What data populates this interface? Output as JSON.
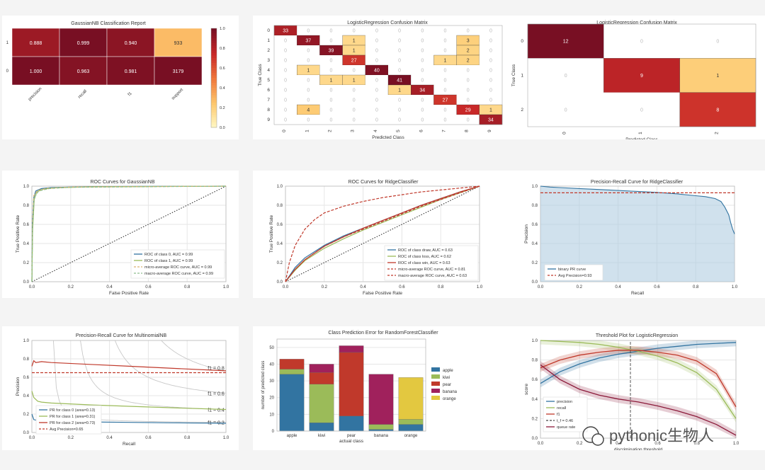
{
  "colors": {
    "blue": "#3274a1",
    "green": "#9bbb59",
    "red": "#c0392b",
    "maroon": "#8b1a3a",
    "yellow": "#e3c840",
    "grid": "#e6e6e6",
    "axis": "#666666",
    "text": "#333333"
  },
  "chart_data": [
    {
      "type": "heatmap",
      "id": "p1",
      "title": "GaussianNB Classification Report",
      "rows": [
        "1",
        "0"
      ],
      "columns": [
        "precision",
        "recall",
        "f1",
        "support"
      ],
      "cells": [
        [
          "0.888",
          "0.999",
          "0.940",
          "933"
        ],
        [
          "1.000",
          "0.963",
          "0.981",
          "3179"
        ]
      ],
      "intensity": [
        [
          0.888,
          0.999,
          0.94,
          0.29
        ],
        [
          1.0,
          0.963,
          0.981,
          1.0
        ]
      ],
      "colorbar_ticks": [
        "1.0",
        "0.8",
        "0.6",
        "0.4",
        "0.2",
        "0.0"
      ]
    },
    {
      "type": "heatmap",
      "id": "p2",
      "title": "LogisticRegression Confusion Matrix",
      "xlabel": "Predicted Class",
      "ylabel": "True Class",
      "labels": [
        "0",
        "1",
        "2",
        "3",
        "4",
        "5",
        "6",
        "7",
        "8",
        "9"
      ],
      "matrix": [
        [
          33,
          0,
          0,
          0,
          0,
          0,
          0,
          0,
          0,
          0
        ],
        [
          0,
          37,
          0,
          1,
          0,
          0,
          0,
          0,
          3,
          0
        ],
        [
          0,
          0,
          39,
          1,
          0,
          0,
          0,
          0,
          2,
          0
        ],
        [
          0,
          0,
          0,
          27,
          0,
          0,
          0,
          1,
          2,
          0
        ],
        [
          0,
          1,
          0,
          0,
          40,
          0,
          0,
          0,
          0,
          0
        ],
        [
          0,
          0,
          1,
          1,
          0,
          41,
          0,
          0,
          0,
          0
        ],
        [
          0,
          0,
          0,
          0,
          0,
          1,
          34,
          0,
          0,
          0
        ],
        [
          0,
          0,
          0,
          0,
          0,
          0,
          0,
          27,
          0,
          0
        ],
        [
          0,
          4,
          0,
          0,
          0,
          0,
          0,
          0,
          29,
          1
        ],
        [
          0,
          0,
          0,
          0,
          0,
          0,
          0,
          0,
          0,
          34
        ]
      ]
    },
    {
      "type": "heatmap",
      "id": "p3",
      "title": "LogisticRegression Confusion Matrix",
      "xlabel": "Predicted Class",
      "ylabel": "True Class",
      "labels": [
        "0",
        "1",
        "2"
      ],
      "matrix": [
        [
          12,
          0,
          0
        ],
        [
          0,
          9,
          1
        ],
        [
          0,
          0,
          8
        ]
      ]
    },
    {
      "type": "line",
      "id": "p4",
      "title": "ROC Curves for GaussianNB",
      "xlabel": "False Positive Rate",
      "ylabel": "True Positive Rate",
      "xlim": [
        0,
        1
      ],
      "ylim": [
        0,
        1
      ],
      "ticks": [
        "0.0",
        "0.2",
        "0.4",
        "0.6",
        "0.8",
        "1.0"
      ],
      "series": [
        {
          "name": "ROC of class 0, AUC = 0.99",
          "color": "#3274a1",
          "style": "solid",
          "x": [
            0,
            0.003,
            0.01,
            0.02,
            0.05,
            0.1,
            0.3,
            1
          ],
          "y": [
            0,
            0.6,
            0.88,
            0.95,
            0.975,
            0.985,
            0.995,
            1
          ]
        },
        {
          "name": "ROC of class 1, AUC = 0.99",
          "color": "#9bbb59",
          "style": "solid",
          "x": [
            0,
            0.004,
            0.012,
            0.025,
            0.06,
            0.12,
            0.3,
            1
          ],
          "y": [
            0,
            0.55,
            0.86,
            0.94,
            0.97,
            0.982,
            0.993,
            1
          ]
        },
        {
          "name": "micro-average ROC curve, AUC = 0.99",
          "color": "#d9b26f",
          "style": "dashed",
          "x": [
            0,
            0.003,
            0.01,
            0.03,
            0.08,
            0.2,
            1
          ],
          "y": [
            0,
            0.62,
            0.9,
            0.955,
            0.978,
            0.99,
            1
          ]
        },
        {
          "name": "macro-average ROC curve, AUC = 0.99",
          "color": "#8fbf8f",
          "style": "dashed",
          "x": [
            0,
            0.004,
            0.012,
            0.035,
            0.09,
            0.2,
            1
          ],
          "y": [
            0,
            0.6,
            0.88,
            0.95,
            0.975,
            0.988,
            1
          ]
        }
      ]
    },
    {
      "type": "line",
      "id": "p5",
      "title": "ROC Curves for RidgeClassifier",
      "xlabel": "False Positive Rate",
      "ylabel": "True Positive Rate",
      "xlim": [
        0,
        1
      ],
      "ylim": [
        0,
        1
      ],
      "ticks": [
        "0.0",
        "0.2",
        "0.4",
        "0.6",
        "0.8",
        "1.0"
      ],
      "series": [
        {
          "name": "ROC of class draw, AUC = 0.63",
          "color": "#3274a1",
          "style": "solid",
          "x": [
            0,
            0.05,
            0.1,
            0.2,
            0.3,
            0.4,
            0.5,
            0.6,
            0.7,
            0.8,
            0.9,
            1
          ],
          "y": [
            0,
            0.15,
            0.25,
            0.38,
            0.48,
            0.56,
            0.64,
            0.72,
            0.8,
            0.87,
            0.94,
            1
          ]
        },
        {
          "name": "ROC of class loss, AUC = 0.62",
          "color": "#9bbb59",
          "style": "solid",
          "x": [
            0,
            0.05,
            0.1,
            0.2,
            0.3,
            0.4,
            0.5,
            0.6,
            0.7,
            0.8,
            0.9,
            1
          ],
          "y": [
            0,
            0.12,
            0.22,
            0.35,
            0.45,
            0.54,
            0.62,
            0.7,
            0.78,
            0.86,
            0.93,
            1
          ]
        },
        {
          "name": "ROC of class win, AUC = 0.63",
          "color": "#c0392b",
          "style": "solid",
          "x": [
            0,
            0.05,
            0.1,
            0.2,
            0.3,
            0.4,
            0.5,
            0.6,
            0.7,
            0.8,
            0.9,
            1
          ],
          "y": [
            0,
            0.13,
            0.23,
            0.37,
            0.47,
            0.56,
            0.64,
            0.72,
            0.8,
            0.87,
            0.94,
            1
          ]
        },
        {
          "name": "micro-average ROC curve, AUC = 0.81",
          "color": "#c0392b",
          "style": "dashed",
          "x": [
            0,
            0.02,
            0.05,
            0.1,
            0.15,
            0.2,
            0.3,
            0.4,
            0.5,
            0.6,
            0.7,
            0.8,
            0.9,
            1
          ],
          "y": [
            0,
            0.2,
            0.38,
            0.55,
            0.65,
            0.72,
            0.79,
            0.84,
            0.88,
            0.91,
            0.94,
            0.96,
            0.98,
            1
          ]
        },
        {
          "name": "macro-average ROC curve, AUC = 0.63",
          "color": "#c0392b",
          "style": "dashed",
          "x": [
            0,
            0.05,
            0.1,
            0.2,
            0.3,
            0.4,
            0.5,
            0.6,
            0.7,
            0.8,
            0.9,
            1
          ],
          "y": [
            0,
            0.13,
            0.23,
            0.37,
            0.47,
            0.55,
            0.63,
            0.71,
            0.79,
            0.86,
            0.93,
            1
          ]
        }
      ]
    },
    {
      "type": "area",
      "id": "p6",
      "title": "Precision-Recall Curve for RidgeClassifier",
      "xlabel": "Recall",
      "ylabel": "Precision",
      "xlim": [
        0,
        1
      ],
      "ylim": [
        0,
        1
      ],
      "ticks": [
        "0.0",
        "0.2",
        "0.4",
        "0.6",
        "0.8",
        "1.0"
      ],
      "x": [
        0,
        0.05,
        0.1,
        0.2,
        0.3,
        0.4,
        0.5,
        0.6,
        0.7,
        0.8,
        0.85,
        0.9,
        0.93,
        0.95,
        0.97,
        0.98,
        0.99,
        1
      ],
      "y": [
        1,
        0.99,
        0.985,
        0.975,
        0.965,
        0.955,
        0.945,
        0.935,
        0.92,
        0.9,
        0.89,
        0.87,
        0.84,
        0.78,
        0.7,
        0.62,
        0.55,
        0.5
      ],
      "avg_precision": 0.93,
      "legend": [
        "binary PR curve",
        "Avg Precision=0.93"
      ]
    },
    {
      "type": "line",
      "id": "p7",
      "title": "Precision-Recall Curve for MultinomialNB",
      "xlabel": "Recall",
      "ylabel": "Precision",
      "xlim": [
        0,
        1
      ],
      "ylim": [
        0,
        1
      ],
      "ticks": [
        "0.0",
        "0.2",
        "0.4",
        "0.6",
        "0.8",
        "1.0"
      ],
      "iso_f1": [
        "f1 = 0.8",
        "f1 = 0.6",
        "f1 = 0.4",
        "f1 = 0.2"
      ],
      "iso_values": [
        0.8,
        0.6,
        0.4,
        0.2
      ],
      "series": [
        {
          "name": "PR for class 0 (area=0.13)",
          "color": "#3274a1",
          "x": [
            0,
            0.01,
            0.05,
            0.1,
            0.3,
            0.5,
            0.7,
            1
          ],
          "y": [
            0.2,
            0.14,
            0.12,
            0.12,
            0.115,
            0.11,
            0.105,
            0.1
          ]
        },
        {
          "name": "PR for class 1 (area=0.31)",
          "color": "#9bbb59",
          "x": [
            0,
            0.01,
            0.03,
            0.05,
            0.1,
            0.3,
            0.5,
            0.7,
            1
          ],
          "y": [
            0.45,
            0.38,
            0.34,
            0.33,
            0.32,
            0.3,
            0.285,
            0.27,
            0.25
          ]
        },
        {
          "name": "PR for class 2 (area=0.73)",
          "color": "#c0392b",
          "x": [
            0,
            0.01,
            0.02,
            0.05,
            0.1,
            0.3,
            0.5,
            0.7,
            1
          ],
          "y": [
            0.72,
            0.78,
            0.76,
            0.77,
            0.76,
            0.74,
            0.72,
            0.7,
            0.67
          ]
        }
      ],
      "avg_precision": 0.65,
      "avg_label": "Avg Precision=0.65"
    },
    {
      "type": "bar",
      "id": "p8",
      "title": "Class Prediction Error for RandomForestClassifier",
      "xlabel": "actual class",
      "ylabel": "number of predicted class",
      "categories": [
        "apple",
        "kiwi",
        "pear",
        "banana",
        "orange"
      ],
      "ylim": [
        0,
        55
      ],
      "yticks": [
        "0",
        "10",
        "20",
        "30",
        "40",
        "50"
      ],
      "series": [
        {
          "name": "apple",
          "color": "#3274a1",
          "values": [
            34,
            5,
            9,
            1,
            4
          ]
        },
        {
          "name": "kiwi",
          "color": "#9bbb59",
          "values": [
            3,
            23,
            0,
            3,
            3
          ]
        },
        {
          "name": "pear",
          "color": "#c0392b",
          "values": [
            6,
            7,
            38,
            0,
            0
          ]
        },
        {
          "name": "banana",
          "color": "#a0215c",
          "values": [
            0,
            5,
            4,
            30,
            0
          ]
        },
        {
          "name": "orange",
          "color": "#e3c840",
          "values": [
            0,
            0,
            0,
            0,
            25
          ]
        }
      ]
    },
    {
      "type": "line",
      "id": "p9",
      "title": "Threshold Plot for LogisticRegression",
      "xlabel": "discrimination threshold",
      "ylabel": "score",
      "xlim": [
        0,
        1
      ],
      "ylim": [
        0,
        1
      ],
      "xticks": [
        "0.0",
        "0.2",
        "0.4",
        "0.6",
        "0.8",
        "1.0"
      ],
      "yticks": [
        "0.0",
        "0.2",
        "0.4",
        "0.6",
        "0.8",
        "1.0"
      ],
      "threshold": 0.46,
      "threshold_label": "t_f = 0.46",
      "series": [
        {
          "name": "precision",
          "color": "#3274a1",
          "x": [
            0,
            0.1,
            0.2,
            0.3,
            0.4,
            0.5,
            0.6,
            0.7,
            0.8,
            0.9,
            1
          ],
          "y": [
            0.56,
            0.68,
            0.76,
            0.82,
            0.86,
            0.89,
            0.92,
            0.94,
            0.96,
            0.97,
            0.98
          ]
        },
        {
          "name": "recall",
          "color": "#9bbb59",
          "x": [
            0,
            0.1,
            0.2,
            0.3,
            0.4,
            0.5,
            0.6,
            0.7,
            0.8,
            0.9,
            1
          ],
          "y": [
            1,
            0.99,
            0.98,
            0.96,
            0.93,
            0.89,
            0.84,
            0.77,
            0.67,
            0.5,
            0.2
          ]
        },
        {
          "name": "f1",
          "color": "#c0392b",
          "x": [
            0,
            0.1,
            0.2,
            0.3,
            0.4,
            0.5,
            0.6,
            0.7,
            0.8,
            0.9,
            1
          ],
          "y": [
            0.72,
            0.8,
            0.85,
            0.88,
            0.9,
            0.9,
            0.88,
            0.85,
            0.79,
            0.66,
            0.32
          ]
        },
        {
          "name": "queue rate",
          "color": "#8b1a3a",
          "x": [
            0,
            0.1,
            0.2,
            0.3,
            0.4,
            0.5,
            0.6,
            0.7,
            0.8,
            0.9,
            1
          ],
          "y": [
            0.75,
            0.6,
            0.5,
            0.44,
            0.4,
            0.37,
            0.33,
            0.28,
            0.22,
            0.14,
            0.03
          ]
        }
      ],
      "legend": [
        "precision",
        "recall",
        "f1",
        "t_f = 0.46",
        "queue rate"
      ]
    }
  ],
  "watermark": {
    "text": "pythonic生物人"
  }
}
